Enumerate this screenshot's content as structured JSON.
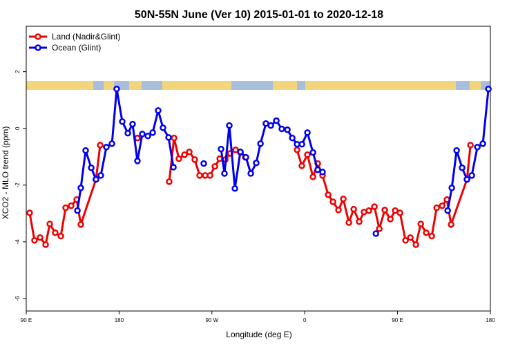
{
  "chart_data": {
    "type": "line",
    "title": "50N-55N June (Ver 10)   2015-01-01 to 2020-12-18",
    "xlabel": "Longitude (deg E)",
    "ylabel": "XCO2 - MLO trend (ppm)",
    "xlim": [
      90,
      540
    ],
    "xticks": [
      {
        "value": 90,
        "label": "90 E"
      },
      {
        "value": 180,
        "label": "180"
      },
      {
        "value": 270,
        "label": "90 W"
      },
      {
        "value": 360,
        "label": "0"
      },
      {
        "value": 450,
        "label": "90 E"
      },
      {
        "value": 540,
        "label": "180"
      }
    ],
    "ylim": [
      -6.44,
      3.6
    ],
    "yticks": [
      2,
      0,
      -2,
      -4,
      -6
    ],
    "legend": "top-left",
    "series": [
      {
        "name": "Land (Nadir&Glint)",
        "color": "#ee0000",
        "x": [
          93.3,
          98.0,
          103.4,
          108.8,
          112.8,
          118.1,
          123.5,
          128.2,
          133.5,
          138.9,
          142.9,
          157.6,
          161.7,
          null,
          197.8,
          null,
          228.6,
          233.3,
          238.0,
          243.4,
          248.1,
          253.4,
          258.1,
          263.5,
          268.2,
          272.9,
          277.6,
          283.0,
          287.7,
          293.0,
          297.7,
          302.4,
          null,
          352.6,
          357.2,
          362.6,
          368.0,
          372.6,
          377.3,
          382.7,
          387.4,
          392.7,
          397.4,
          402.8,
          407.5,
          412.8,
          417.5,
          422.2,
          427.6,
          432.3,
          437.6,
          443.0,
          447.7,
          452.4,
          457.7,
          462.4,
          467.8,
          472.5,
          477.8,
          483.2,
          487.9,
          493.2,
          497.9,
          501.9,
          517.3,
          520.7
        ],
        "values": [
          -2.98,
          -3.95,
          -3.85,
          -4.1,
          -3.37,
          -3.68,
          -3.8,
          -2.8,
          -2.73,
          -2.51,
          -3.39,
          -1.8,
          -0.59,
          null,
          -0.34,
          null,
          -1.88,
          -0.34,
          -1.07,
          -0.93,
          -0.83,
          -1.1,
          -1.66,
          -1.66,
          -1.66,
          -1.34,
          -1.07,
          -1.1,
          -0.88,
          -0.76,
          -0.85,
          -1.02,
          null,
          -0.76,
          -1.32,
          -0.93,
          -1.71,
          -1.24,
          -1.66,
          -2.34,
          -2.59,
          -2.88,
          -2.49,
          -3.32,
          -2.85,
          -3.29,
          -2.95,
          -2.9,
          -2.76,
          -3.54,
          -2.88,
          -3.2,
          -2.9,
          -2.98,
          -3.95,
          -3.85,
          -4.1,
          -3.37,
          -3.68,
          -3.8,
          -2.8,
          -2.73,
          -2.51,
          -3.39,
          -1.8,
          -0.59
        ]
      },
      {
        "name": "Ocean (Glint)",
        "color": "#0000ee",
        "x": [
          139.6,
          142.9,
          147.6,
          153.0,
          157.6,
          162.3,
          167.7,
          173.1,
          177.7,
          183.1,
          188.5,
          193.1,
          197.8,
          202.5,
          207.9,
          212.6,
          217.9,
          222.6,
          228.0,
          232.7,
          null,
          262.1,
          null,
          278.9,
          282.2,
          286.9,
          292.3,
          297.6,
          303.0,
          307.7,
          313.0,
          317.1,
          322.4,
          327.1,
          332.5,
          337.8,
          343.2,
          347.9,
          352.6,
          357.3,
          362.6,
          368.0,
          372.6,
          377.3,
          null,
          429.0,
          null,
          498.6,
          502.6,
          507.3,
          512.6,
          517.3,
          522.0,
          527.4,
          532.7,
          538.1
        ],
        "values": [
          -2.9,
          -2.1,
          -0.78,
          -1.39,
          -1.8,
          -1.66,
          -0.66,
          -0.54,
          1.39,
          0.24,
          -0.17,
          0.15,
          -1.15,
          -0.2,
          -0.27,
          -0.15,
          0.63,
          0.02,
          -0.32,
          -1.37,
          null,
          -1.24,
          null,
          -0.73,
          -1.59,
          0.1,
          -2.12,
          -0.83,
          -1.02,
          -1.59,
          -1.22,
          -0.54,
          0.17,
          0.1,
          0.27,
          -0.02,
          -0.05,
          -0.34,
          -0.56,
          -0.56,
          -0.15,
          -0.85,
          -1.46,
          -1.54,
          null,
          -3.71,
          null,
          -2.9,
          -2.1,
          -0.78,
          -1.39,
          -1.8,
          -1.66,
          -0.66,
          -0.54,
          1.39
        ]
      }
    ]
  }
}
